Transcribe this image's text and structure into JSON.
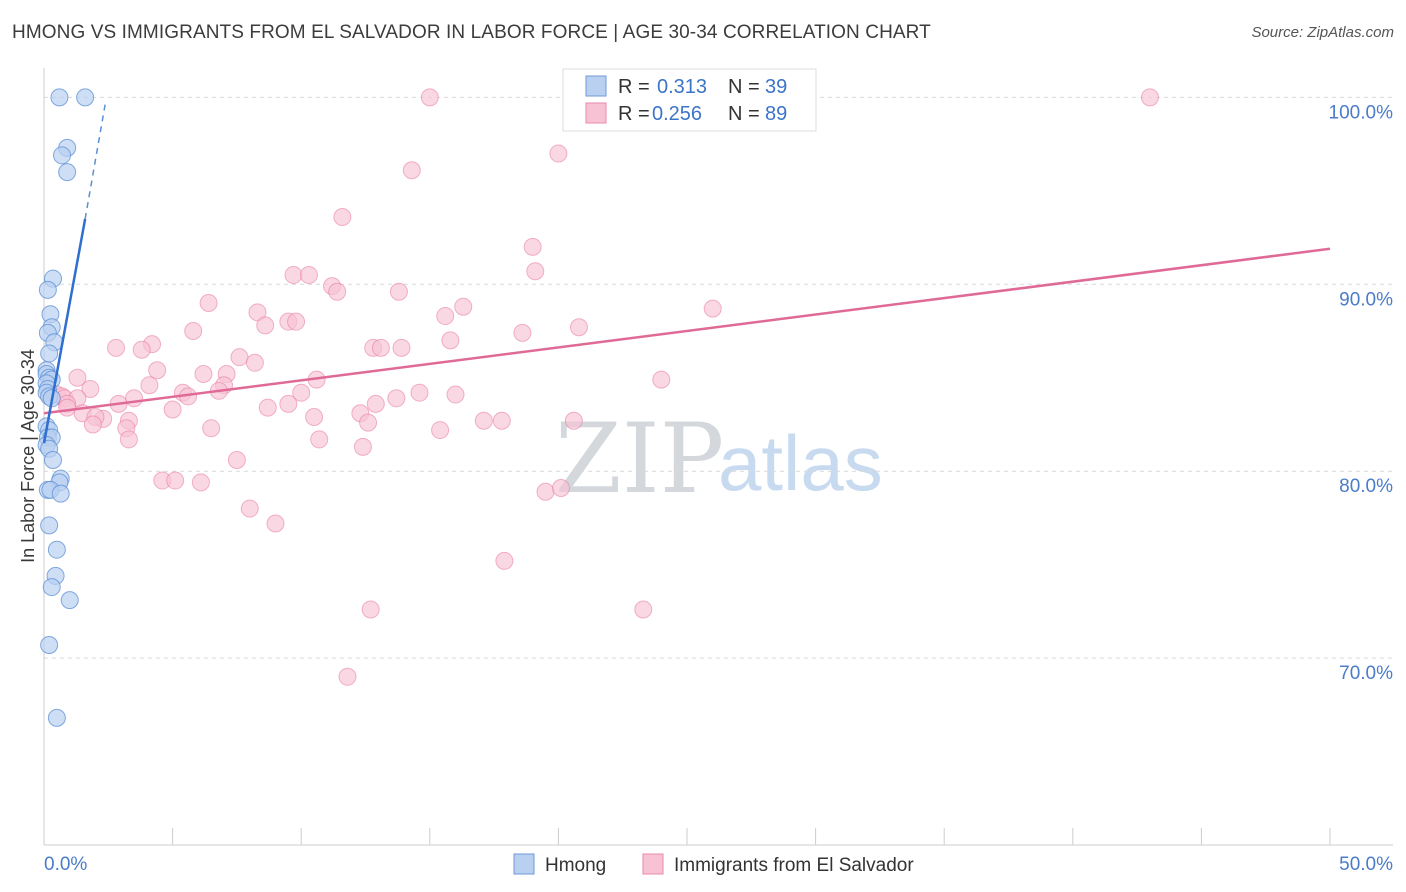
{
  "header": {
    "title": "HMONG VS IMMIGRANTS FROM EL SALVADOR IN LABOR FORCE | AGE 30-34 CORRELATION CHART",
    "source": "Source: ZipAtlas.com"
  },
  "watermark": {
    "zip": "ZIP",
    "atlas": "atlas"
  },
  "legend": {
    "rows": [
      {
        "r_label": "R =",
        "r_value": "0.313",
        "n_label": "N =",
        "n_value": "39"
      },
      {
        "r_label": "R =",
        "r_value": "0.256",
        "n_label": "N =",
        "n_value": "89"
      }
    ]
  },
  "chart_data": {
    "type": "scatter",
    "title": "HMONG VS IMMIGRANTS FROM EL SALVADOR IN LABOR FORCE | AGE 30-34 CORRELATION CHART",
    "xlabel": "",
    "ylabel": "In Labor Force | Age 30-34",
    "xlim": [
      0,
      50
    ],
    "ylim": [
      60,
      102
    ],
    "x_tick_labels": [
      "0.0%",
      "50.0%"
    ],
    "y_ticks": [
      {
        "value": 100,
        "label": "100.0%"
      },
      {
        "value": 90,
        "label": "90.0%"
      },
      {
        "value": 80,
        "label": "80.0%"
      },
      {
        "value": 70,
        "label": "70.0%"
      }
    ],
    "colors": {
      "hmong": "#5b8fd6",
      "hmong_fill": "#b9d0f1",
      "salvador": "#e879a0",
      "salvador_fill": "#f7c3d4"
    },
    "series": [
      {
        "name": "Hmong",
        "points": [
          [
            0.6,
            100
          ],
          [
            1.6,
            100
          ],
          [
            0.9,
            97.3
          ],
          [
            0.7,
            96.9
          ],
          [
            0.9,
            96
          ],
          [
            0.35,
            90.3
          ],
          [
            0.15,
            89.7
          ],
          [
            0.25,
            88.4
          ],
          [
            0.3,
            87.7
          ],
          [
            0.15,
            87.4
          ],
          [
            0.4,
            86.9
          ],
          [
            0.2,
            86.3
          ],
          [
            0.1,
            85.4
          ],
          [
            0.1,
            85.2
          ],
          [
            0.2,
            85
          ],
          [
            0.3,
            84.9
          ],
          [
            0.1,
            84.7
          ],
          [
            0.15,
            84.4
          ],
          [
            0.1,
            84.2
          ],
          [
            0.2,
            84
          ],
          [
            0.3,
            83.9
          ],
          [
            0.1,
            82.4
          ],
          [
            0.2,
            82.2
          ],
          [
            0.15,
            81.8
          ],
          [
            0.3,
            81.8
          ],
          [
            0.1,
            81.4
          ],
          [
            0.2,
            81.2
          ],
          [
            0.35,
            80.6
          ],
          [
            0.65,
            79.6
          ],
          [
            0.6,
            79.4
          ],
          [
            0.15,
            79
          ],
          [
            0.25,
            79
          ],
          [
            0.65,
            78.8
          ],
          [
            0.2,
            77.1
          ],
          [
            0.5,
            75.8
          ],
          [
            0.45,
            74.4
          ],
          [
            0.3,
            73.8
          ],
          [
            1.0,
            73.1
          ],
          [
            0.2,
            70.7
          ],
          [
            0.5,
            66.8
          ]
        ],
        "trend": {
          "x": [
            0.0,
            1.6
          ],
          "y": [
            81.5,
            93.5
          ]
        },
        "trend_dashed": {
          "x": [
            1.6,
            2.4
          ],
          "y": [
            93.5,
            99.8
          ]
        }
      },
      {
        "name": "Immigrants from El Salvador",
        "points": [
          [
            15,
            100
          ],
          [
            43,
            100
          ],
          [
            20,
            97
          ],
          [
            14.3,
            96.1
          ],
          [
            11.6,
            93.6
          ],
          [
            19,
            92
          ],
          [
            19.1,
            90.7
          ],
          [
            9.7,
            90.5
          ],
          [
            10.3,
            90.5
          ],
          [
            11.2,
            89.9
          ],
          [
            11.4,
            89.6
          ],
          [
            13.8,
            89.6
          ],
          [
            6.4,
            89
          ],
          [
            16.3,
            88.8
          ],
          [
            26,
            88.7
          ],
          [
            8.3,
            88.5
          ],
          [
            15.6,
            88.3
          ],
          [
            9.5,
            88
          ],
          [
            9.8,
            88
          ],
          [
            8.6,
            87.8
          ],
          [
            20.8,
            87.7
          ],
          [
            5.8,
            87.5
          ],
          [
            18.6,
            87.4
          ],
          [
            15.8,
            87
          ],
          [
            4.2,
            86.8
          ],
          [
            2.8,
            86.6
          ],
          [
            12.8,
            86.6
          ],
          [
            13.1,
            86.6
          ],
          [
            13.9,
            86.6
          ],
          [
            3.8,
            86.5
          ],
          [
            7.6,
            86.1
          ],
          [
            8.2,
            85.8
          ],
          [
            4.4,
            85.4
          ],
          [
            6.2,
            85.2
          ],
          [
            7.1,
            85.2
          ],
          [
            1.3,
            85
          ],
          [
            10.6,
            84.9
          ],
          [
            24,
            84.9
          ],
          [
            4.1,
            84.6
          ],
          [
            7.0,
            84.6
          ],
          [
            1.8,
            84.4
          ],
          [
            5.4,
            84.2
          ],
          [
            6.8,
            84.3
          ],
          [
            10.0,
            84.2
          ],
          [
            14.6,
            84.2
          ],
          [
            16.0,
            84.1
          ],
          [
            5.6,
            84.0
          ],
          [
            3.5,
            83.9
          ],
          [
            0.5,
            84.1
          ],
          [
            0.7,
            84
          ],
          [
            0.8,
            83.9
          ],
          [
            1.3,
            83.9
          ],
          [
            0.9,
            83.6
          ],
          [
            13.7,
            83.9
          ],
          [
            2.9,
            83.6
          ],
          [
            12.9,
            83.6
          ],
          [
            8.7,
            83.4
          ],
          [
            9.5,
            83.6
          ],
          [
            5.0,
            83.3
          ],
          [
            0.9,
            83.4
          ],
          [
            1.5,
            83.1
          ],
          [
            12.3,
            83.1
          ],
          [
            10.5,
            82.9
          ],
          [
            2.3,
            82.8
          ],
          [
            2.0,
            82.9
          ],
          [
            3.3,
            82.7
          ],
          [
            12.6,
            82.6
          ],
          [
            17.1,
            82.7
          ],
          [
            17.8,
            82.7
          ],
          [
            20.6,
            82.7
          ],
          [
            1.9,
            82.5
          ],
          [
            3.2,
            82.3
          ],
          [
            6.5,
            82.3
          ],
          [
            15.4,
            82.2
          ],
          [
            3.3,
            81.7
          ],
          [
            10.7,
            81.7
          ],
          [
            12.4,
            81.3
          ],
          [
            7.5,
            80.6
          ],
          [
            4.6,
            79.5
          ],
          [
            5.1,
            79.5
          ],
          [
            6.1,
            79.4
          ],
          [
            19.5,
            78.9
          ],
          [
            20.1,
            79.1
          ],
          [
            8.0,
            78.0
          ],
          [
            9.0,
            77.2
          ],
          [
            17.9,
            75.2
          ],
          [
            12.7,
            72.6
          ],
          [
            23.3,
            72.6
          ],
          [
            11.8,
            69
          ]
        ],
        "trend": {
          "x": [
            0.0,
            50.0
          ],
          "y": [
            83.1,
            91.9
          ]
        }
      }
    ]
  },
  "bottom_legend": {
    "items": [
      "Hmong",
      "Immigrants from El Salvador"
    ]
  }
}
